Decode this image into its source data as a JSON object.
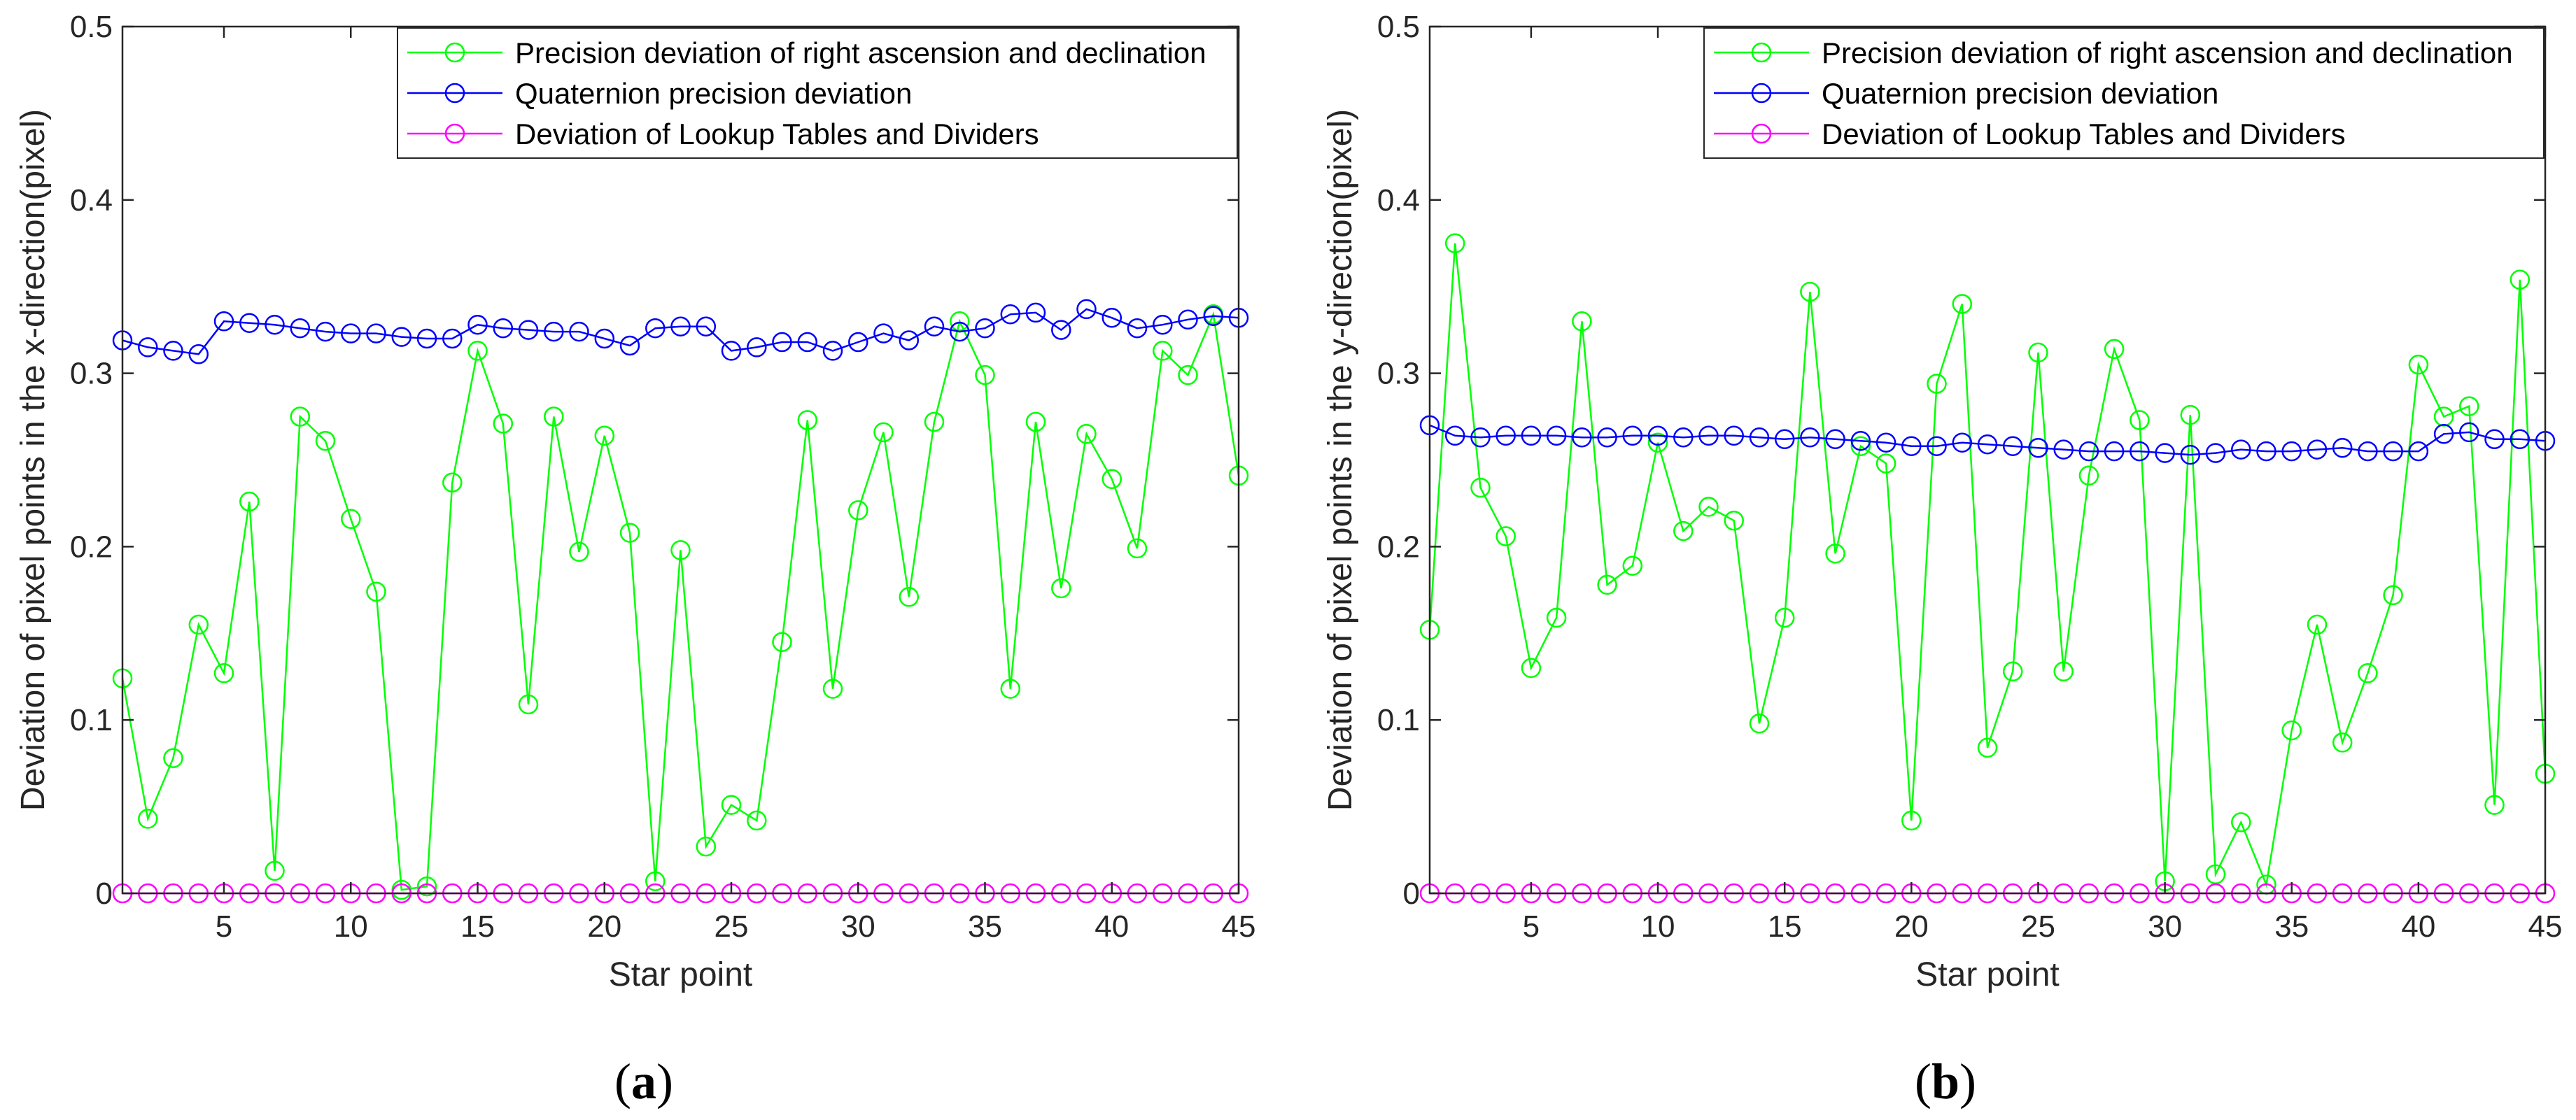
{
  "figure": {
    "panels": [
      {
        "caption_open": "(",
        "caption_letter": "a",
        "caption_close": ")"
      },
      {
        "caption_open": "(",
        "caption_letter": "b",
        "caption_close": ")"
      }
    ]
  },
  "chart_data": [
    {
      "type": "line",
      "title": "",
      "xlabel": "Star point",
      "ylabel": "Deviation of pixel points in the x-direction(pixel)",
      "xlim": [
        1,
        45
      ],
      "ylim": [
        0,
        0.5
      ],
      "xticks": [
        "5",
        "10",
        "15",
        "20",
        "25",
        "30",
        "35",
        "40",
        "45"
      ],
      "yticks": [
        "0",
        "0.1",
        "0.2",
        "0.3",
        "0.4",
        "0.5"
      ],
      "grid": false,
      "legend_position": "top-right",
      "x": [
        1,
        2,
        3,
        4,
        5,
        6,
        7,
        8,
        9,
        10,
        11,
        12,
        13,
        14,
        15,
        16,
        17,
        18,
        19,
        20,
        21,
        22,
        23,
        24,
        25,
        26,
        27,
        28,
        29,
        30,
        31,
        32,
        33,
        34,
        35,
        36,
        37,
        38,
        39,
        40,
        41,
        42,
        43,
        44,
        45
      ],
      "series": [
        {
          "name": "Precision deviation of right ascension and declination",
          "color": "#00ff00",
          "values": [
            0.124,
            0.043,
            0.078,
            0.155,
            0.127,
            0.226,
            0.013,
            0.275,
            0.261,
            0.216,
            0.174,
            0.002,
            0.004,
            0.237,
            0.313,
            0.271,
            0.109,
            0.275,
            0.197,
            0.264,
            0.208,
            0.007,
            0.198,
            0.027,
            0.051,
            0.042,
            0.145,
            0.273,
            0.118,
            0.221,
            0.266,
            0.171,
            0.272,
            0.33,
            0.299,
            0.118,
            0.272,
            0.176,
            0.265,
            0.239,
            0.199,
            0.313,
            0.299,
            0.334,
            0.241
          ]
        },
        {
          "name": "Quaternion precision deviation",
          "color": "#0000ff",
          "values": [
            0.319,
            0.315,
            0.313,
            0.311,
            0.33,
            0.329,
            0.328,
            0.326,
            0.324,
            0.323,
            0.323,
            0.321,
            0.32,
            0.32,
            0.328,
            0.326,
            0.325,
            0.324,
            0.324,
            0.32,
            0.316,
            0.326,
            0.327,
            0.327,
            0.313,
            0.315,
            0.318,
            0.318,
            0.313,
            0.318,
            0.323,
            0.319,
            0.327,
            0.324,
            0.326,
            0.334,
            0.335,
            0.325,
            0.337,
            0.332,
            0.326,
            0.328,
            0.331,
            0.333,
            0.332
          ]
        },
        {
          "name": "Deviation of Lookup Tables and Dividers",
          "color": "#ff00ff",
          "values": [
            0,
            0,
            0,
            0,
            0,
            0,
            0,
            0,
            0,
            0,
            0,
            0,
            0,
            0,
            0,
            0,
            0,
            0,
            0,
            0,
            0,
            0,
            0,
            0,
            0,
            0,
            0,
            0,
            0,
            0,
            0,
            0,
            0,
            0,
            0,
            0,
            0,
            0,
            0,
            0,
            0,
            0,
            0,
            0,
            0
          ]
        }
      ]
    },
    {
      "type": "line",
      "title": "",
      "xlabel": "Star point",
      "ylabel": "Deviation of pixel points in the y-direction(pixel)",
      "xlim": [
        1,
        45
      ],
      "ylim": [
        0,
        0.5
      ],
      "xticks": [
        "5",
        "10",
        "15",
        "20",
        "25",
        "30",
        "35",
        "40",
        "45"
      ],
      "yticks": [
        "0",
        "0.1",
        "0.2",
        "0.3",
        "0.4",
        "0.5"
      ],
      "grid": false,
      "legend_position": "top-right",
      "x": [
        1,
        2,
        3,
        4,
        5,
        6,
        7,
        8,
        9,
        10,
        11,
        12,
        13,
        14,
        15,
        16,
        17,
        18,
        19,
        20,
        21,
        22,
        23,
        24,
        25,
        26,
        27,
        28,
        29,
        30,
        31,
        32,
        33,
        34,
        35,
        36,
        37,
        38,
        39,
        40,
        41,
        42,
        43,
        44,
        45
      ],
      "series": [
        {
          "name": "Precision deviation of right ascension and declination",
          "color": "#00ff00",
          "values": [
            0.152,
            0.375,
            0.234,
            0.206,
            0.13,
            0.159,
            0.33,
            0.178,
            0.189,
            0.26,
            0.209,
            0.223,
            0.215,
            0.098,
            0.159,
            0.347,
            0.196,
            0.258,
            0.248,
            0.042,
            0.294,
            0.34,
            0.084,
            0.128,
            0.312,
            0.128,
            0.241,
            0.314,
            0.273,
            0.007,
            0.276,
            0.011,
            0.041,
            0.005,
            0.094,
            0.155,
            0.087,
            0.127,
            0.172,
            0.305,
            0.275,
            0.281,
            0.051,
            0.354,
            0.069
          ]
        },
        {
          "name": "Quaternion precision deviation",
          "color": "#0000ff",
          "values": [
            0.27,
            0.264,
            0.263,
            0.264,
            0.264,
            0.264,
            0.263,
            0.263,
            0.264,
            0.264,
            0.263,
            0.264,
            0.264,
            0.263,
            0.262,
            0.263,
            0.262,
            0.261,
            0.26,
            0.258,
            0.258,
            0.26,
            0.259,
            0.258,
            0.257,
            0.256,
            0.255,
            0.255,
            0.255,
            0.254,
            0.253,
            0.254,
            0.256,
            0.255,
            0.255,
            0.256,
            0.257,
            0.255,
            0.255,
            0.255,
            0.265,
            0.266,
            0.262,
            0.262,
            0.261
          ]
        },
        {
          "name": "Deviation of Lookup Tables and Dividers",
          "color": "#ff00ff",
          "values": [
            0,
            0,
            0,
            0,
            0,
            0,
            0,
            0,
            0,
            0,
            0,
            0,
            0,
            0,
            0,
            0,
            0,
            0,
            0,
            0,
            0,
            0,
            0,
            0,
            0,
            0,
            0,
            0,
            0,
            0,
            0,
            0,
            0,
            0,
            0,
            0,
            0,
            0,
            0,
            0,
            0,
            0,
            0,
            0,
            0
          ]
        }
      ]
    }
  ]
}
